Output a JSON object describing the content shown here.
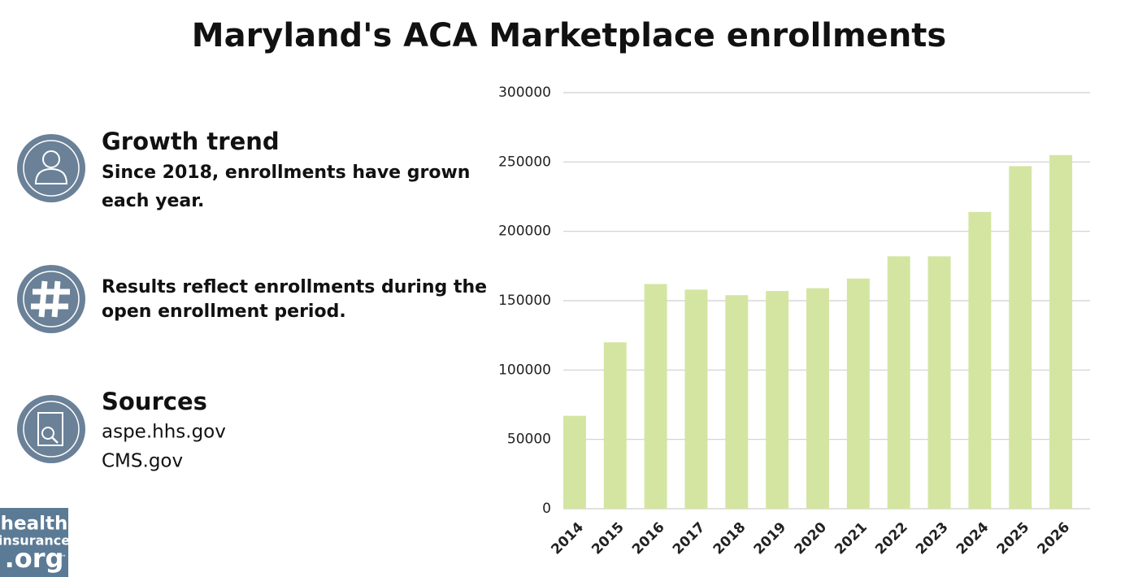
{
  "chart_data": {
    "type": "bar",
    "title": "Maryland's ACA Marketplace enrollments",
    "categories": [
      "2014",
      "2015",
      "2016",
      "2017",
      "2018",
      "2019",
      "2020",
      "2021",
      "2022",
      "2023",
      "2024",
      "2025",
      "2026"
    ],
    "values": [
      67000,
      120000,
      162000,
      158000,
      154000,
      157000,
      159000,
      166000,
      182000,
      182000,
      214000,
      247000,
      255000
    ],
    "color": "#d4e5a2",
    "ylim": [
      0,
      300000
    ],
    "yticks": [
      0,
      50000,
      100000,
      150000,
      200000,
      250000,
      300000
    ],
    "grid": true
  },
  "sidebar": [
    {
      "heading": "Growth trend",
      "lines": [
        "Since 2018, enrollments have grown",
        "each year."
      ]
    },
    {
      "lines": [
        "Results reflect enrollments during the",
        "open enrollment period."
      ]
    },
    {
      "heading": "Sources",
      "lines": [
        "aspe.hhs.gov",
        "CMS.gov"
      ]
    }
  ],
  "logo": {
    "lines": [
      "health",
      "insurance",
      ".org"
    ],
    "mark": "™"
  }
}
